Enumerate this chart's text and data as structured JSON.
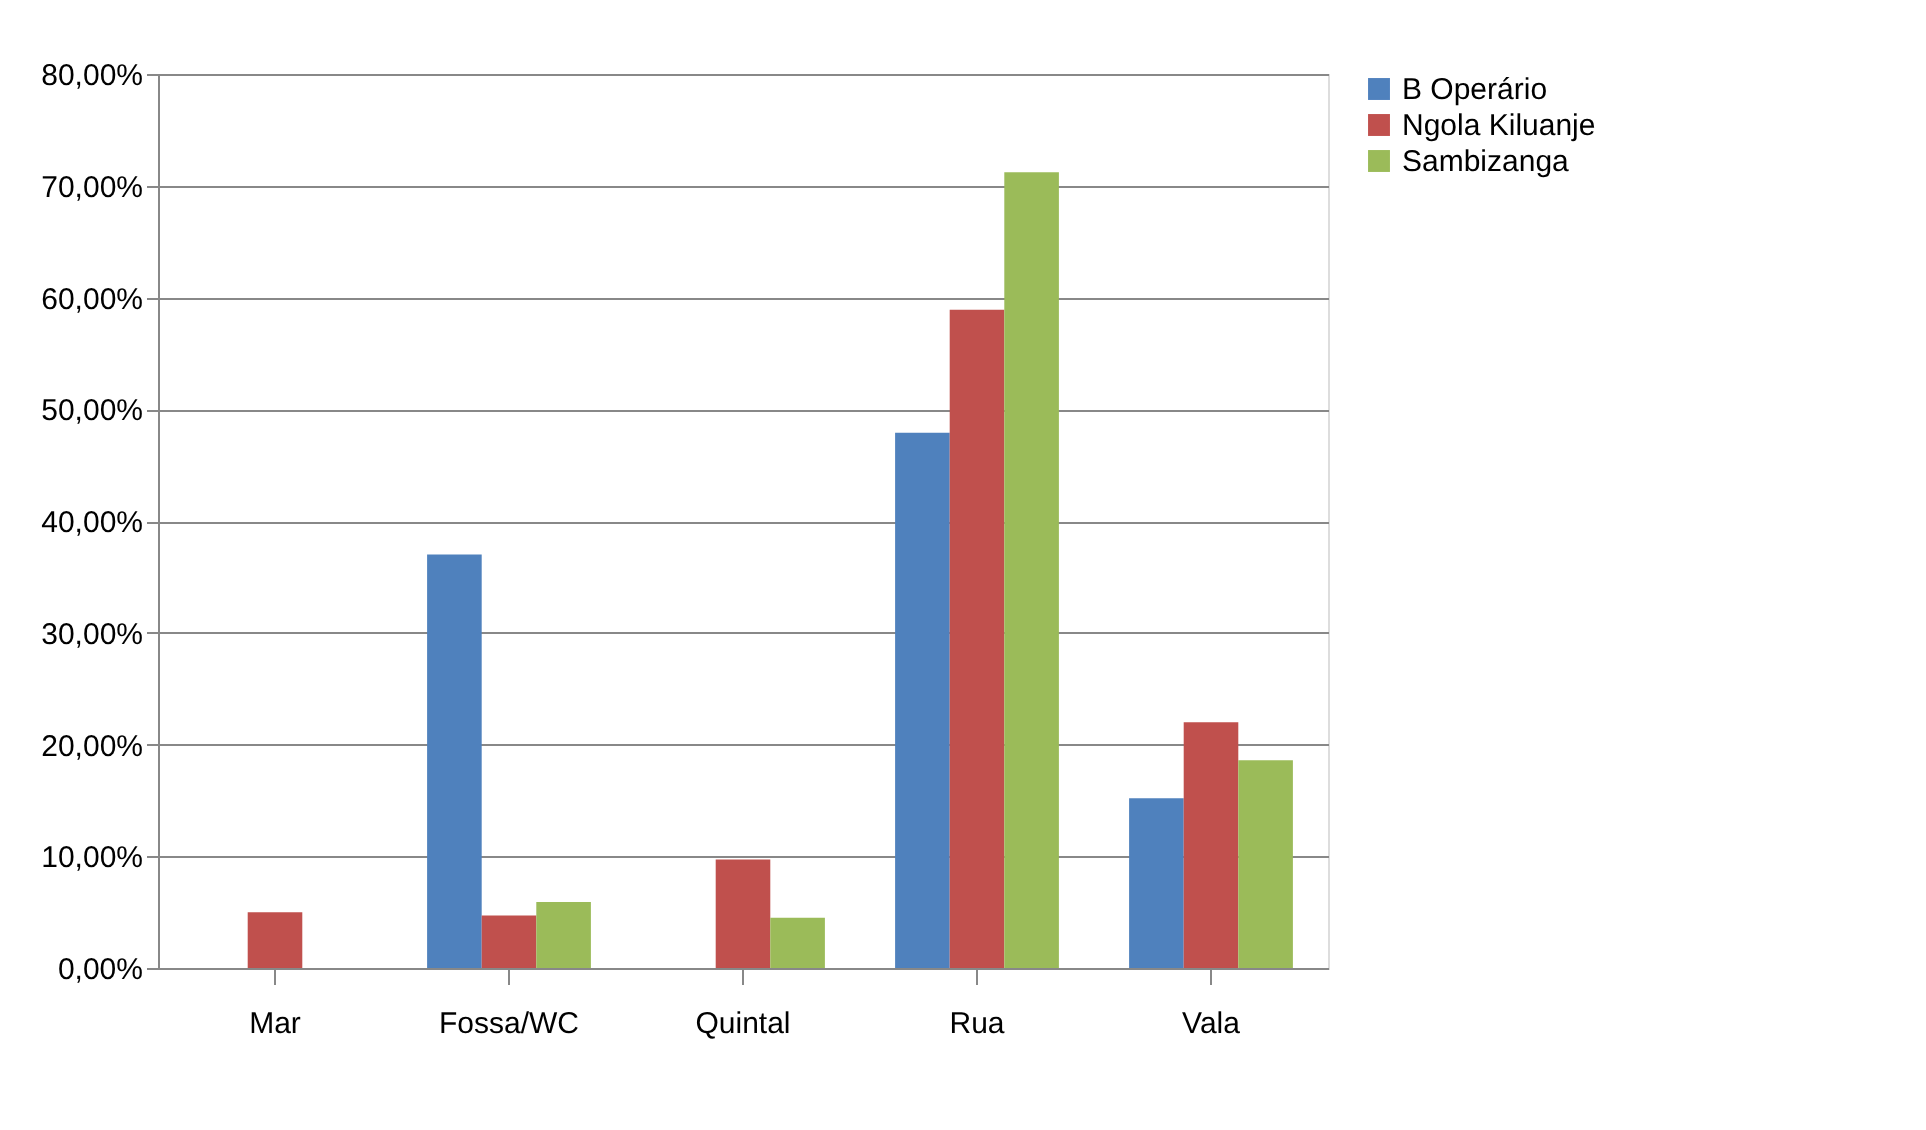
{
  "chart_data": {
    "type": "bar",
    "categories": [
      "Mar",
      "Fossa/WC",
      "Quintal",
      "Rua",
      "Vala"
    ],
    "series": [
      {
        "name": "B Operário",
        "color": "#4f81bd",
        "values": [
          0,
          37.0,
          0,
          47.9,
          15.2
        ]
      },
      {
        "name": "Ngola Kiluanje",
        "color": "#c0504d",
        "values": [
          5.0,
          4.7,
          9.7,
          58.9,
          22.0
        ]
      },
      {
        "name": "Sambizanga",
        "color": "#9bbb59",
        "values": [
          0,
          5.9,
          4.5,
          71.2,
          18.6
        ]
      }
    ],
    "ylim": [
      0,
      80
    ],
    "yticks": [
      {
        "value": 0,
        "label": "0,00%"
      },
      {
        "value": 10,
        "label": "10,00%"
      },
      {
        "value": 20,
        "label": "20,00%"
      },
      {
        "value": 30,
        "label": "30,00%"
      },
      {
        "value": 40,
        "label": "40,00%"
      },
      {
        "value": 50,
        "label": "50,00%"
      },
      {
        "value": 60,
        "label": "60,00%"
      },
      {
        "value": 70,
        "label": "70,00%"
      },
      {
        "value": 80,
        "label": "80,00%"
      }
    ],
    "grid": "y",
    "legend": "right"
  }
}
